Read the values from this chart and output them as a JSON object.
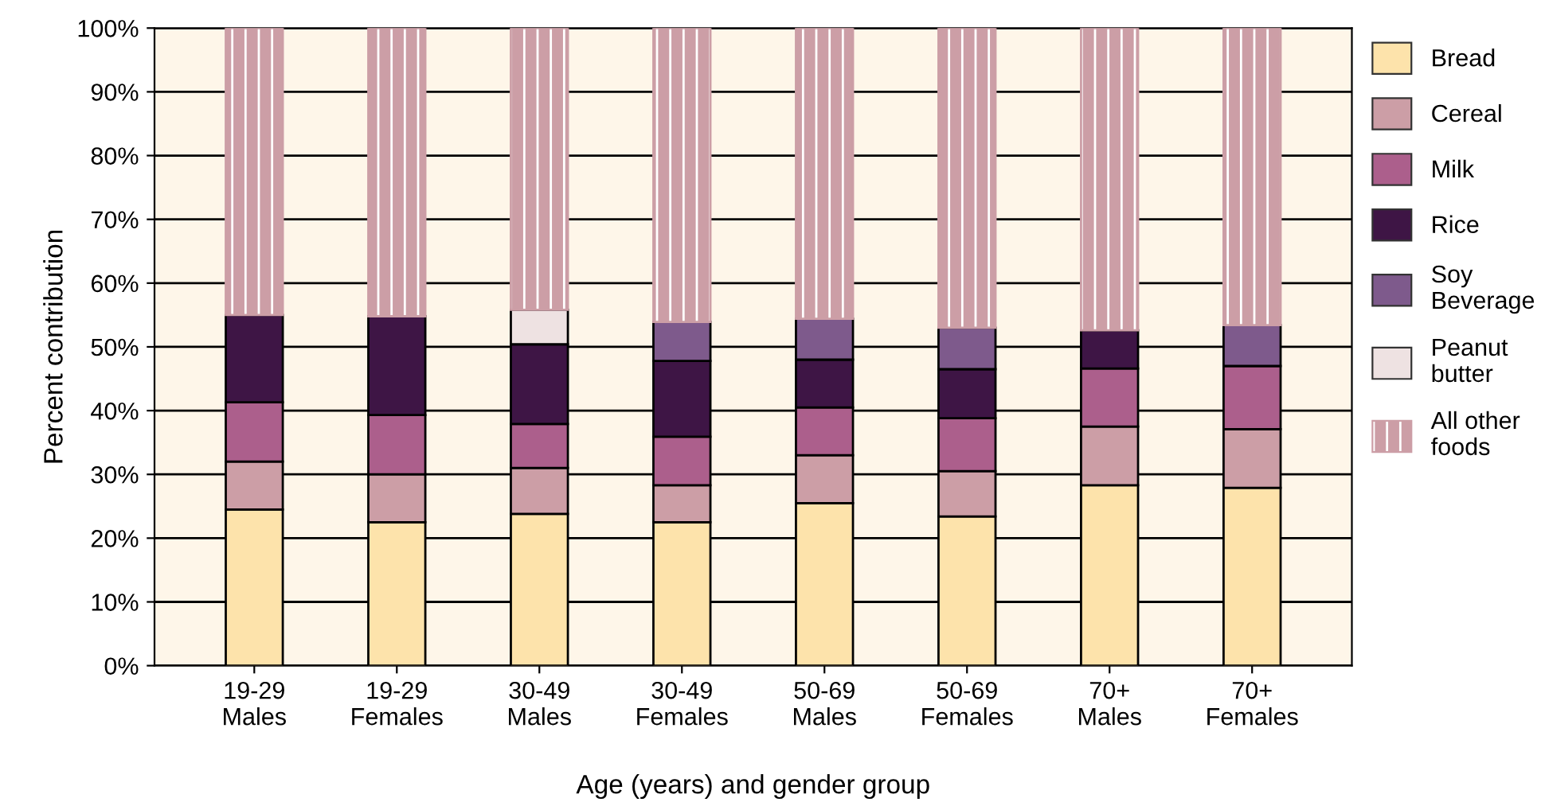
{
  "chart_data": {
    "type": "bar",
    "stacked": true,
    "xlabel": "Age (years) and gender group",
    "ylabel": "Percent contribution",
    "categories": [
      "19-29\nMales",
      "19-29\nFemales",
      "30-49\nMales",
      "30-49\nFemales",
      "50-69\nMales",
      "50-69\nFemales",
      "70+\nMales",
      "70+\nFemales"
    ],
    "ylim": [
      0,
      100
    ],
    "yticks": [
      {
        "value": 0,
        "label": "0%"
      },
      {
        "value": 10,
        "label": "10%"
      },
      {
        "value": 20,
        "label": "20%"
      },
      {
        "value": 30,
        "label": "30%"
      },
      {
        "value": 40,
        "label": "40%"
      },
      {
        "value": 50,
        "label": "50%"
      },
      {
        "value": 60,
        "label": "60%"
      },
      {
        "value": 70,
        "label": "70%"
      },
      {
        "value": 80,
        "label": "80%"
      },
      {
        "value": 90,
        "label": "90%"
      },
      {
        "value": 100,
        "label": "100%"
      }
    ],
    "grid": "y",
    "legend": "right",
    "series": [
      {
        "name": "Bread",
        "color": "#fde3ab",
        "values": [
          24.5,
          22.5,
          23.8,
          22.5,
          25.5,
          23.4,
          28.3,
          27.9
        ]
      },
      {
        "name": "Cereal",
        "color": "#cc9ea6",
        "values": [
          7.5,
          7.5,
          7.2,
          5.8,
          7.5,
          7.1,
          9.2,
          9.2
        ]
      },
      {
        "name": "Milk",
        "color": "#ac5f8c",
        "values": [
          9.3,
          9.3,
          6.9,
          7.6,
          7.5,
          8.3,
          9.1,
          9.9
        ]
      },
      {
        "name": "Rice",
        "color": "#3e1545",
        "values": [
          13.7,
          15.5,
          12.5,
          11.9,
          7.5,
          7.7,
          6.0,
          null
        ]
      },
      {
        "name": "Soy\nBeverage",
        "color": "#7e5a8c",
        "values": [
          null,
          null,
          null,
          6.1,
          6.4,
          6.5,
          null,
          6.4
        ]
      },
      {
        "name": "Peanut\nbutter",
        "color": "#eee2e2",
        "values": [
          null,
          null,
          5.4,
          null,
          null,
          null,
          null,
          null
        ]
      },
      {
        "name": "All other\nfoods",
        "color": "#cc9ea6",
        "values": [
          45.0,
          45.2,
          44.2,
          46.1,
          45.6,
          47.0,
          47.4,
          46.6
        ]
      }
    ]
  }
}
